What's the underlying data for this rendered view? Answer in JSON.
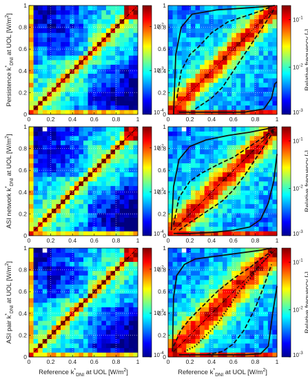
{
  "labels": {
    "ylabel_row1": "Persistence k*DNI at UOL [W/m²]",
    "ylabel_row2": "ASI network k*DNI at UOL [W/m²]",
    "ylabel_row3": "ASI pair k*DNI at UOL [W/m²]",
    "xlabel": "Reference k*DNI at UOL [W/m²]",
    "colorbar_right": "Relative frequency [-]"
  },
  "chart_data": {
    "type": "heatmap",
    "grid": "dotted",
    "x_ticks": [
      "0",
      "0.2",
      "0.4",
      "0.6",
      "0.8",
      "1"
    ],
    "y_ticks": [
      "0",
      "0.2",
      "0.4",
      "0.6",
      "0.8",
      "1"
    ],
    "xlim": [
      0,
      1
    ],
    "ylim": [
      0,
      1
    ],
    "colorbar_left": {
      "scale": "log",
      "ticks": [
        "10^-4",
        "10^-3",
        "10^-2"
      ],
      "range": [
        0.0001,
        0.03
      ]
    },
    "colorbar_right": {
      "scale": "log",
      "ticks": [
        "10^-3",
        "10^-2",
        "10^-1"
      ],
      "range": [
        0.001,
        0.2
      ]
    },
    "panels": [
      {
        "row": 1,
        "col": 1,
        "diag": "dashdot",
        "contours": []
      },
      {
        "row": 1,
        "col": 2,
        "diag": "dotted",
        "contours": [
          {
            "style": "solid",
            "x": [
              0.05,
              0.07,
              0.12,
              0.22,
              0.45,
              0.75,
              0.9,
              0.98
            ],
            "y": [
              0.0,
              0.55,
              0.8,
              0.92,
              0.96,
              0.98,
              0.99,
              1.0
            ]
          },
          {
            "style": "dashed",
            "x": [
              0.08,
              0.12,
              0.2,
              0.28,
              0.4,
              0.55,
              0.7,
              0.85,
              0.95
            ],
            "y": [
              0.15,
              0.4,
              0.55,
              0.62,
              0.75,
              0.85,
              0.9,
              0.95,
              0.99
            ]
          },
          {
            "style": "dashed",
            "x": [
              0.25,
              0.4,
              0.5,
              0.6,
              0.7,
              0.8,
              0.9,
              0.97
            ],
            "y": [
              0.05,
              0.15,
              0.25,
              0.4,
              0.55,
              0.7,
              0.85,
              0.96
            ]
          },
          {
            "style": "solid",
            "x": [
              0.1,
              0.4,
              0.7,
              0.88,
              0.95,
              0.98,
              1.0
            ],
            "y": [
              0.02,
              0.02,
              0.02,
              0.05,
              0.15,
              0.28,
              0.3
            ]
          }
        ]
      },
      {
        "row": 2,
        "col": 1,
        "diag": "dashdot",
        "contours": []
      },
      {
        "row": 2,
        "col": 2,
        "diag": "dashdot",
        "contours": [
          {
            "style": "solid",
            "x": [
              0.03,
              0.05,
              0.1,
              0.2,
              0.35,
              0.55,
              0.75,
              0.9,
              0.98
            ],
            "y": [
              0.05,
              0.45,
              0.7,
              0.82,
              0.88,
              0.92,
              0.95,
              0.98,
              1.0
            ]
          },
          {
            "style": "dashed",
            "x": [
              0.05,
              0.1,
              0.2,
              0.3,
              0.45,
              0.6,
              0.75,
              0.9,
              0.97
            ],
            "y": [
              0.1,
              0.35,
              0.5,
              0.57,
              0.65,
              0.72,
              0.82,
              0.92,
              0.98
            ]
          },
          {
            "style": "dashed",
            "x": [
              0.1,
              0.2,
              0.35,
              0.5,
              0.6,
              0.7,
              0.8,
              0.9,
              0.97
            ],
            "y": [
              0.05,
              0.12,
              0.22,
              0.32,
              0.42,
              0.55,
              0.7,
              0.85,
              0.96
            ]
          },
          {
            "style": "solid",
            "x": [
              0.05,
              0.2,
              0.4,
              0.6,
              0.75,
              0.85,
              0.92,
              0.97,
              1.0
            ],
            "y": [
              0.02,
              0.02,
              0.03,
              0.05,
              0.08,
              0.15,
              0.3,
              0.5,
              0.75
            ]
          }
        ]
      },
      {
        "row": 3,
        "col": 1,
        "diag": "dashdot",
        "contours": []
      },
      {
        "row": 3,
        "col": 2,
        "diag": "dashdot",
        "contours": [
          {
            "style": "solid",
            "x": [
              0.04,
              0.05,
              0.08,
              0.15,
              0.25,
              0.4,
              0.55,
              0.7,
              0.85,
              0.95
            ],
            "y": [
              0.05,
              0.55,
              0.75,
              0.85,
              0.9,
              0.92,
              0.94,
              0.96,
              0.98,
              1.0
            ]
          },
          {
            "style": "dashed",
            "x": [
              0.05,
              0.12,
              0.2,
              0.3,
              0.45,
              0.6,
              0.75,
              0.85,
              0.95
            ],
            "y": [
              0.1,
              0.25,
              0.35,
              0.45,
              0.6,
              0.72,
              0.82,
              0.9,
              0.97
            ]
          },
          {
            "style": "dotted",
            "x": [
              0.15,
              0.25,
              0.35,
              0.45,
              0.55,
              0.65,
              0.75,
              0.85,
              0.95
            ],
            "y": [
              0.05,
              0.1,
              0.2,
              0.3,
              0.45,
              0.6,
              0.72,
              0.85,
              0.96
            ]
          },
          {
            "style": "dashed",
            "x": [
              0.35,
              0.5,
              0.6,
              0.7,
              0.8,
              0.88,
              0.95
            ],
            "y": [
              0.02,
              0.05,
              0.12,
              0.25,
              0.45,
              0.65,
              0.85
            ]
          },
          {
            "style": "solid",
            "x": [
              0.1,
              0.4,
              0.7,
              0.85,
              0.92,
              0.96,
              1.0
            ],
            "y": [
              0.02,
              0.02,
              0.02,
              0.03,
              0.1,
              0.4,
              0.65
            ]
          }
        ]
      }
    ]
  }
}
